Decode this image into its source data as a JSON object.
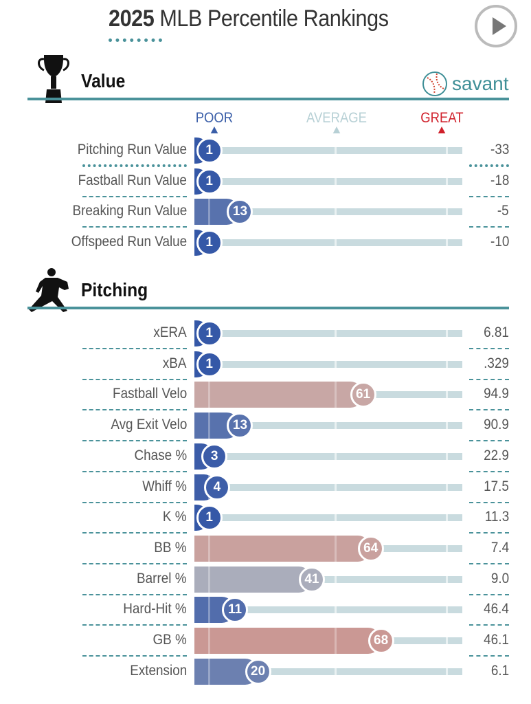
{
  "header": {
    "year": "2025",
    "title": "MLB Percentile Rankings",
    "play_button": "play"
  },
  "brand": {
    "name": "savant"
  },
  "legend": {
    "poor": "POOR",
    "average": "AVERAGE",
    "great": "GREAT",
    "poor_color": "#3a5ea8",
    "average_color": "#b7d0d5",
    "great_color": "#d0202b"
  },
  "chart_data": [
    {
      "type": "bar",
      "title": "Value",
      "xlim": [
        0,
        100
      ],
      "rows": [
        {
          "label": "Pitching Run Value",
          "percentile": 1,
          "value": "-33"
        },
        {
          "label": "Fastball Run Value",
          "percentile": 1,
          "value": "-18"
        },
        {
          "label": "Breaking Run Value",
          "percentile": 13,
          "value": "-5"
        },
        {
          "label": "Offspeed Run Value",
          "percentile": 1,
          "value": "-10"
        }
      ]
    },
    {
      "type": "bar",
      "title": "Pitching",
      "xlim": [
        0,
        100
      ],
      "rows": [
        {
          "label": "xERA",
          "percentile": 1,
          "value": "6.81"
        },
        {
          "label": "xBA",
          "percentile": 1,
          "value": ".329"
        },
        {
          "label": "Fastball Velo",
          "percentile": 61,
          "value": "94.9"
        },
        {
          "label": "Avg Exit Velo",
          "percentile": 13,
          "value": "90.9"
        },
        {
          "label": "Chase %",
          "percentile": 3,
          "value": "22.9"
        },
        {
          "label": "Whiff %",
          "percentile": 4,
          "value": "17.5"
        },
        {
          "label": "K %",
          "percentile": 1,
          "value": "11.3"
        },
        {
          "label": "BB %",
          "percentile": 64,
          "value": "7.4"
        },
        {
          "label": "Barrel %",
          "percentile": 41,
          "value": "9.0"
        },
        {
          "label": "Hard-Hit %",
          "percentile": 11,
          "value": "46.4"
        },
        {
          "label": "GB %",
          "percentile": 68,
          "value": "46.1"
        },
        {
          "label": "Extension",
          "percentile": 20,
          "value": "6.1"
        }
      ]
    }
  ]
}
